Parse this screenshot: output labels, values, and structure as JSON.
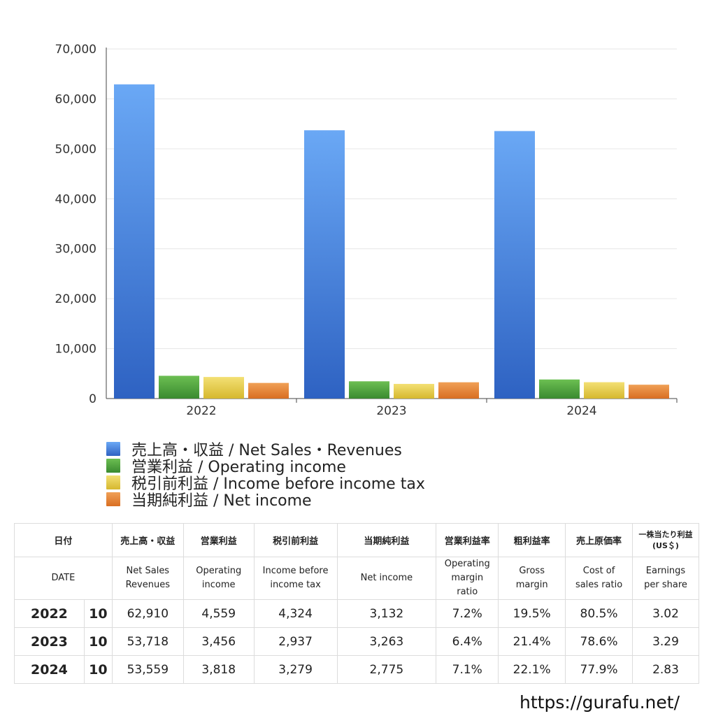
{
  "chart_data": {
    "type": "bar",
    "categories": [
      "2022",
      "2023",
      "2024"
    ],
    "series": [
      {
        "name": "売上高・収益 / Net Sales・Revenues",
        "values": [
          62910,
          53718,
          53559
        ],
        "color": "#3f7fe0"
      },
      {
        "name": "営業利益 / Operating income",
        "values": [
          4559,
          3456,
          3818
        ],
        "color": "#4a9a3a"
      },
      {
        "name": "税引前利益 / Income before income tax",
        "values": [
          4324,
          2937,
          3279
        ],
        "color": "#e2c640"
      },
      {
        "name": "当期純利益 / Net income",
        "values": [
          3132,
          3263,
          2775
        ],
        "color": "#e07a2e"
      }
    ],
    "ylim": [
      0,
      70000
    ],
    "yticks": [
      "0",
      "10,000",
      "20,000",
      "30,000",
      "40,000",
      "50,000",
      "60,000",
      "70,000"
    ],
    "grid": true,
    "legend": "bottom"
  },
  "table": {
    "header_jp": {
      "date": "日付",
      "sales": "売上高・収益",
      "op": "営業利益",
      "pretax": "税引前利益",
      "net": "当期純利益",
      "op_margin": "営業利益率",
      "gross": "粗利益率",
      "cost": "売上原価率",
      "eps_1": "一株当たり利益",
      "eps_2": "(US＄)"
    },
    "header_en": {
      "date": "DATE",
      "sales_1": "Net Sales",
      "sales_2": "Revenues",
      "op_1": "Operating",
      "op_2": "income",
      "pretax_1": "Income before",
      "pretax_2": "income tax",
      "net": "Net income",
      "op_margin_1": "Operating",
      "op_margin_2": "margin",
      "op_margin_3": "ratio",
      "gross_1": "Gross",
      "gross_2": "margin",
      "cost_1": "Cost of",
      "cost_2": "sales ratio",
      "eps_1": "Earnings",
      "eps_2": "per share"
    },
    "rows": [
      {
        "year": "2022",
        "month": "10",
        "sales": "62,910",
        "op": "4,559",
        "pretax": "4,324",
        "net": "3,132",
        "op_margin": "7.2%",
        "gross": "19.5%",
        "cost": "80.5%",
        "eps": "3.02"
      },
      {
        "year": "2023",
        "month": "10",
        "sales": "53,718",
        "op": "3,456",
        "pretax": "2,937",
        "net": "3,263",
        "op_margin": "6.4%",
        "gross": "21.4%",
        "cost": "78.6%",
        "eps": "3.29"
      },
      {
        "year": "2024",
        "month": "10",
        "sales": "53,559",
        "op": "3,818",
        "pretax": "3,279",
        "net": "2,775",
        "op_margin": "7.1%",
        "gross": "22.1%",
        "cost": "77.9%",
        "eps": "2.83"
      }
    ]
  },
  "footer": "https://gurafu.net/"
}
